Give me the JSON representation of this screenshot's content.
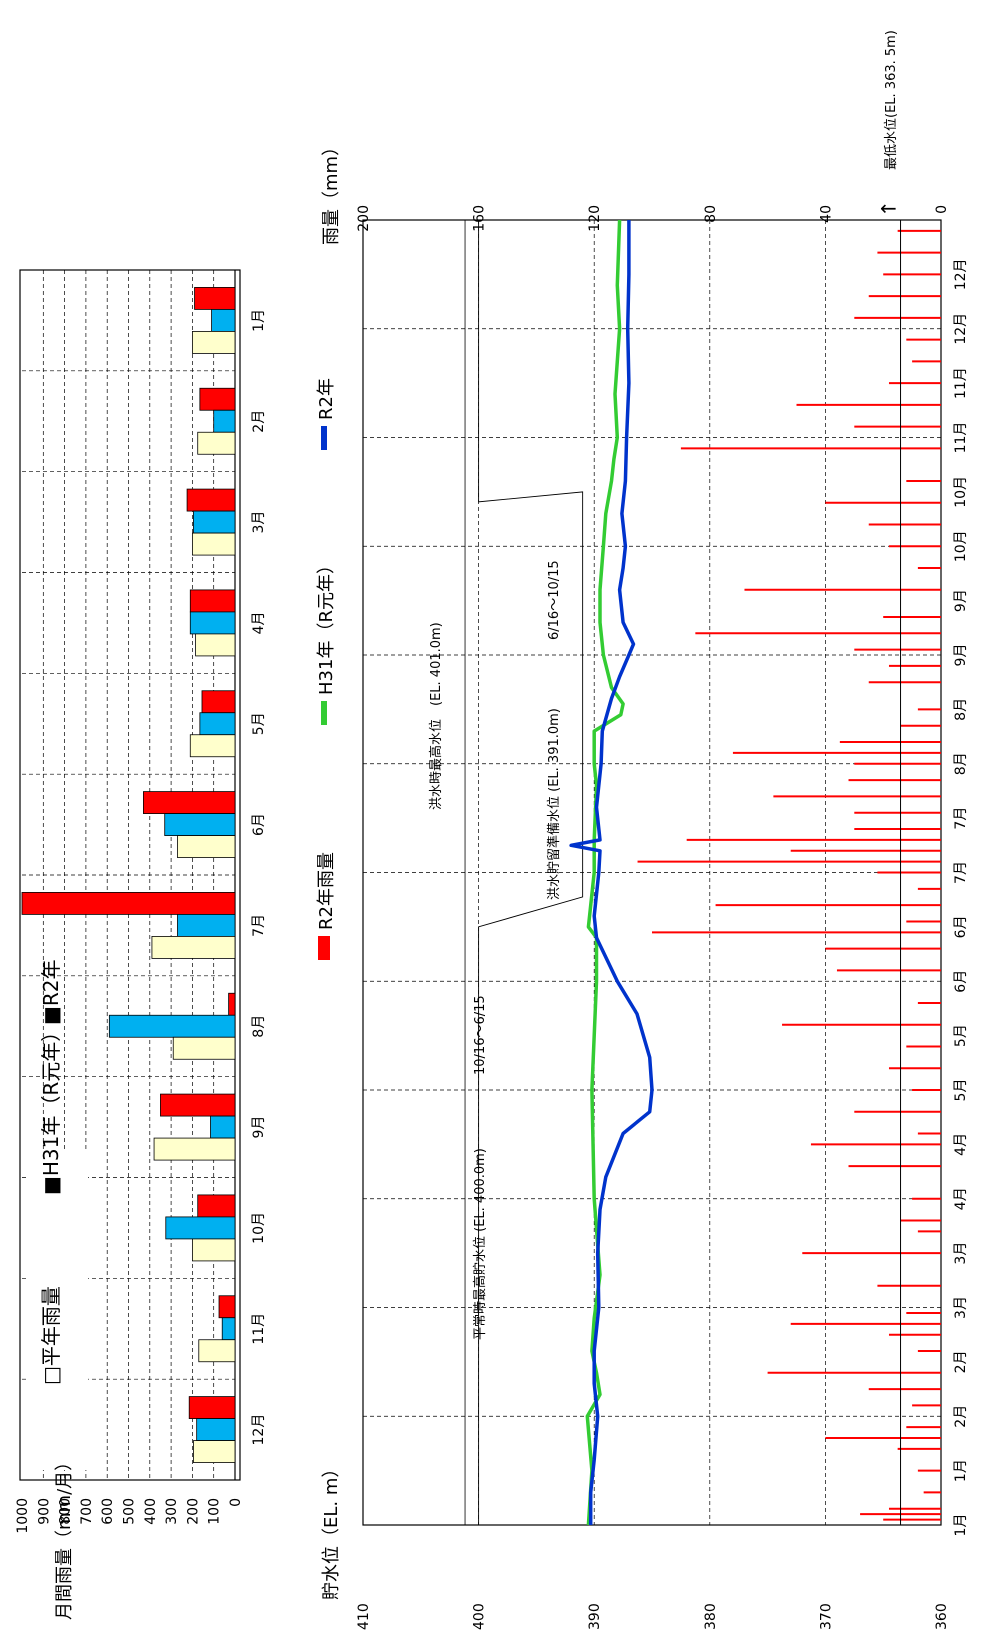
{
  "chart_data": [
    {
      "type": "bar",
      "ylabel": "月間雨量（mm/月）",
      "ylim": [
        0,
        1000
      ],
      "y_ticks": [
        "1000",
        "900",
        "800",
        "700",
        "600",
        "500",
        "400",
        "300",
        "200",
        "100",
        "0"
      ],
      "categories": [
        "1月",
        "2月",
        "3月",
        "4月",
        "5月",
        "6月",
        "7月",
        "8月",
        "9月",
        "10月",
        "11月",
        "12月"
      ],
      "series": [
        {
          "name": "□平年雨量",
          "color": "#ffffcc",
          "values": [
            200,
            175,
            200,
            185,
            210,
            270,
            390,
            290,
            380,
            200,
            170,
            195
          ]
        },
        {
          "name": "■H31年（R元年）",
          "color": "#00b0f0",
          "values": [
            110,
            100,
            195,
            210,
            165,
            330,
            270,
            590,
            115,
            325,
            60,
            180
          ]
        },
        {
          "name": "■R2年",
          "color": "#ff0000",
          "values": [
            190,
            165,
            225,
            210,
            155,
            430,
            1010,
            30,
            350,
            175,
            75,
            215
          ]
        }
      ]
    },
    {
      "type": "line",
      "ylabel": "貯水位（EL. m）",
      "ylim": [
        360,
        410
      ],
      "y_ticks": [
        "360",
        "370",
        "380",
        "390",
        "400",
        "410"
      ],
      "y2label": "雨量（mm）",
      "y2lim": [
        0,
        200
      ],
      "y2_ticks": [
        "0",
        "40",
        "80",
        "120",
        "160",
        "200"
      ],
      "x_ticks": [
        "1月",
        "2月",
        "3月",
        "4月",
        "5月",
        "6月",
        "7月",
        "8月",
        "9月",
        "10月",
        "11月",
        "12月"
      ],
      "legend": [
        "R2年雨量",
        "H31年（R元年）",
        "R2年"
      ],
      "annotations": {
        "normal": "平常時最高貯水位 (EL. 400.0m)",
        "normal_period": "10/16～6/15",
        "flood_high": "洪水時最高水位　(EL. 401.0m)",
        "flood_reserve": "洪水貯留準備水位 (EL. 391.0m)",
        "flood_period": "6/16～10/15",
        "min_level": "最低水位(EL. 363. 5m)",
        "arrow": "←"
      },
      "series": [
        {
          "name": "H31年（R元年）",
          "color": "#33cc33",
          "x": [
            1,
            1.5,
            2,
            2.2,
            2.4,
            2.6,
            2.9,
            3.3,
            4,
            5,
            6,
            6.4,
            6.5,
            7,
            7.3,
            7.8,
            8,
            8.3,
            8.45,
            8.55,
            8.7,
            9,
            9.3,
            9.6,
            10,
            10.3,
            10.6,
            10.8,
            11,
            11.4,
            11.7,
            12,
            12.4,
            13
          ],
          "y": [
            390.5,
            390.2,
            390.6,
            389.5,
            389.8,
            390.2,
            390,
            389.5,
            390,
            390.2,
            389.8,
            389.8,
            390.5,
            390,
            390,
            389.8,
            390,
            390,
            387.7,
            387.5,
            388.5,
            389.2,
            389.5,
            389.5,
            389.2,
            389,
            388.5,
            388.3,
            388,
            388.2,
            388,
            387.8,
            388,
            387.8
          ]
        },
        {
          "name": "R2年",
          "color": "#0033cc",
          "x": [
            1,
            1.3,
            1.6,
            2,
            2.3,
            2.6,
            3,
            3.5,
            3.9,
            4.2,
            4.6,
            4.8,
            5,
            5.3,
            5.7,
            6,
            6.4,
            6.6,
            6.8,
            7,
            7.2,
            7.25,
            7.3,
            7.6,
            7.8,
            8,
            8.3,
            8.6,
            8.8,
            9,
            9.1,
            9.3,
            9.6,
            9.8,
            10,
            10.3,
            10.6,
            11,
            11.5,
            12,
            12.5,
            13
          ],
          "y": [
            390.3,
            390.3,
            390,
            389.7,
            390,
            390,
            389.6,
            389.7,
            389.5,
            389,
            387.5,
            385.2,
            385,
            385.2,
            386.3,
            388,
            389.8,
            390,
            389.8,
            389.6,
            389.5,
            392,
            389.5,
            389.8,
            389.6,
            389.4,
            389.3,
            388.5,
            387.8,
            387,
            386.6,
            387.5,
            387.8,
            387.5,
            387.3,
            387.6,
            387.3,
            387.2,
            387,
            387.1,
            387,
            387
          ]
        },
        {
          "name": "R2年雨量",
          "color": "#ff0000",
          "x": [
            1.05,
            1.1,
            1.15,
            1.3,
            1.5,
            1.7,
            1.8,
            1.9,
            2.1,
            2.25,
            2.4,
            2.6,
            2.75,
            2.85,
            2.95,
            3.2,
            3.5,
            3.7,
            3.8,
            4.0,
            4.3,
            4.5,
            4.6,
            4.8,
            5.0,
            5.2,
            5.4,
            5.6,
            5.8,
            6.1,
            6.3,
            6.45,
            6.55,
            6.7,
            6.85,
            7.0,
            7.1,
            7.2,
            7.3,
            7.4,
            7.55,
            7.7,
            7.85,
            8.0,
            8.1,
            8.2,
            8.35,
            8.5,
            8.75,
            8.9,
            9.05,
            9.2,
            9.35,
            9.6,
            9.8,
            10.0,
            10.2,
            10.4,
            10.6,
            10.9,
            11.1,
            11.3,
            11.5,
            11.7,
            11.9,
            12.1,
            12.3,
            12.5,
            12.7,
            12.9
          ],
          "y": [
            20,
            28,
            18,
            6,
            8,
            15,
            40,
            12,
            10,
            25,
            60,
            8,
            18,
            52,
            12,
            22,
            48,
            8,
            14,
            10,
            32,
            45,
            8,
            30,
            10,
            18,
            12,
            55,
            8,
            36,
            40,
            100,
            12,
            78,
            8,
            22,
            105,
            52,
            88,
            30,
            30,
            58,
            32,
            30,
            72,
            35,
            14,
            8,
            25,
            18,
            30,
            85,
            20,
            68,
            8,
            18,
            25,
            40,
            12,
            90,
            30,
            50,
            18,
            10,
            12,
            30,
            25,
            20,
            22,
            15
          ]
        }
      ]
    }
  ]
}
